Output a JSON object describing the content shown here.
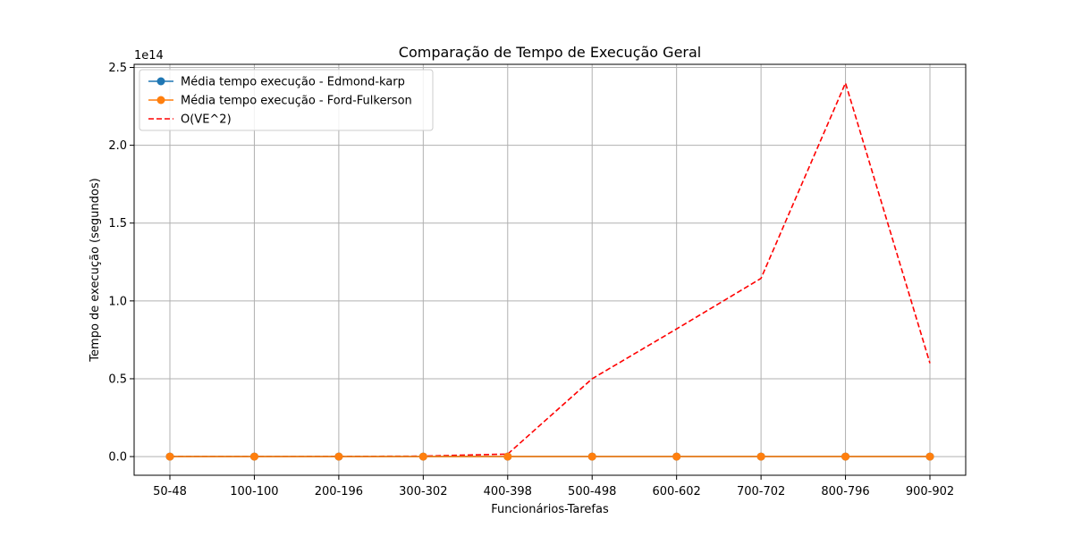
{
  "chart_data": {
    "type": "line",
    "title": "Comparação de Tempo de Execução Geral",
    "xlabel": "Funcionários-Tarefas",
    "ylabel": "Tempo de execução (segundos)",
    "y_offset_label": "1e14",
    "y_scale": 100000000000000.0,
    "categories": [
      "50-48",
      "100-100",
      "200-196",
      "300-302",
      "400-398",
      "500-498",
      "600-602",
      "700-702",
      "800-796",
      "900-902"
    ],
    "ylim": [
      -0.12,
      2.52
    ],
    "yticks": [
      0.0,
      0.5,
      1.0,
      1.5,
      2.0,
      2.5
    ],
    "ytick_labels": [
      "0.0",
      "0.5",
      "1.0",
      "1.5",
      "2.0",
      "2.5"
    ],
    "grid": true,
    "legend_position": "top-left",
    "series": [
      {
        "name": "Média tempo execução - Edmond-karp",
        "style": "solid-marker",
        "color": "#1f77b4",
        "values": [
          0,
          0,
          0,
          0,
          0,
          0,
          0,
          0,
          0,
          0
        ]
      },
      {
        "name": "Média tempo execução - Ford-Fulkerson",
        "style": "solid-marker",
        "color": "#ff7f0e",
        "values": [
          0,
          0,
          0,
          0,
          0,
          0,
          0,
          0,
          0,
          0
        ]
      },
      {
        "name": "O(VE^2)",
        "style": "dashed",
        "color": "#ff0000",
        "values": [
          0.0,
          0.0,
          0.001,
          0.003,
          0.016,
          0.5,
          0.82,
          1.145,
          2.4,
          0.6
        ]
      }
    ]
  }
}
